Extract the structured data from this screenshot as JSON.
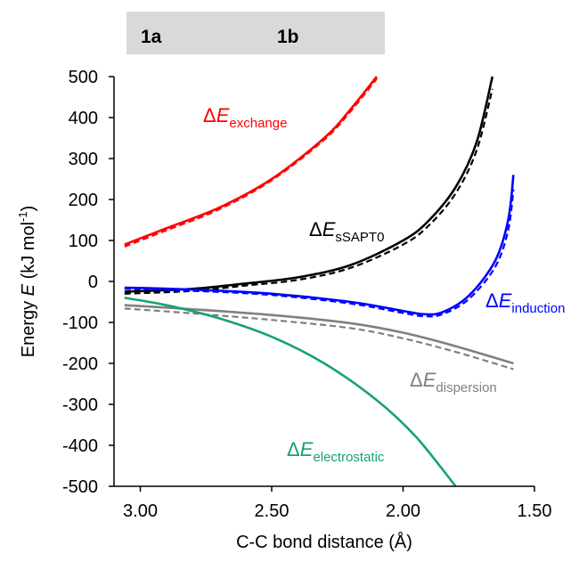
{
  "chart_data": {
    "type": "line",
    "xlabel": "C-C bond distance (Å)",
    "ylabel_parts": [
      "Energy ",
      "E",
      " (kJ mol",
      "-1",
      ")"
    ],
    "xlim": [
      3.1,
      1.5
    ],
    "ylim": [
      -500,
      500
    ],
    "x_ticks": [
      "3.00",
      "2.50",
      "2.00",
      "1.50"
    ],
    "y_ticks": [
      "500",
      "400",
      "300",
      "200",
      "100",
      "0",
      "-100",
      "-200",
      "-300",
      "-400",
      "-500"
    ],
    "legend": [
      {
        "label": "1a",
        "style": "solid"
      },
      {
        "label": "1b",
        "style": "dashed"
      }
    ],
    "series": [
      {
        "name": "exchange",
        "label_sub": "exchange",
        "color": "#ff0000",
        "x": [
          3.06,
          2.9,
          2.7,
          2.5,
          2.3,
          2.2,
          2.1
        ],
        "values": [
          90,
          130,
          180,
          250,
          350,
          420,
          500
        ]
      },
      {
        "name": "sSAPT0",
        "label_sub": "sSAPT0",
        "color": "#000000",
        "x": [
          3.06,
          2.8,
          2.6,
          2.4,
          2.2,
          2.0,
          1.9,
          1.8,
          1.72,
          1.66
        ],
        "values": [
          -25,
          -18,
          -5,
          10,
          40,
          100,
          150,
          230,
          340,
          500
        ]
      },
      {
        "name": "induction",
        "label_sub": "induction",
        "color": "#0000ff",
        "x": [
          3.06,
          2.8,
          2.5,
          2.2,
          2.0,
          1.92,
          1.85,
          1.75,
          1.65,
          1.6,
          1.58
        ],
        "values": [
          -15,
          -20,
          -30,
          -50,
          -72,
          -80,
          -75,
          -35,
          50,
          150,
          260
        ]
      },
      {
        "name": "dispersion",
        "label_sub": "dispersion",
        "color": "#808080",
        "x": [
          3.06,
          2.8,
          2.5,
          2.2,
          2.0,
          1.8,
          1.58
        ],
        "values": [
          -58,
          -68,
          -82,
          -102,
          -125,
          -158,
          -200
        ]
      },
      {
        "name": "electrostatic",
        "label_sub": "electrostatic",
        "color": "#18a36c",
        "x": [
          3.06,
          2.9,
          2.7,
          2.5,
          2.3,
          2.1,
          1.95,
          1.8
        ],
        "values": [
          -40,
          -58,
          -90,
          -135,
          -200,
          -290,
          -380,
          -500
        ]
      }
    ],
    "dashed_offsets": {
      "exchange": [
        -5,
        -5,
        -4,
        -3,
        -4,
        -5,
        -5
      ],
      "sSAPT0": [
        -5,
        -5,
        -5,
        -6,
        -7,
        -10,
        -12,
        -15,
        -20,
        -30
      ],
      "induction": [
        -3,
        -3,
        -3,
        -4,
        -5,
        -5,
        -5,
        -8,
        -15,
        -25,
        -35
      ],
      "dispersion": [
        -8,
        -10,
        -12,
        -12,
        -14,
        -14,
        -14
      ]
    }
  }
}
